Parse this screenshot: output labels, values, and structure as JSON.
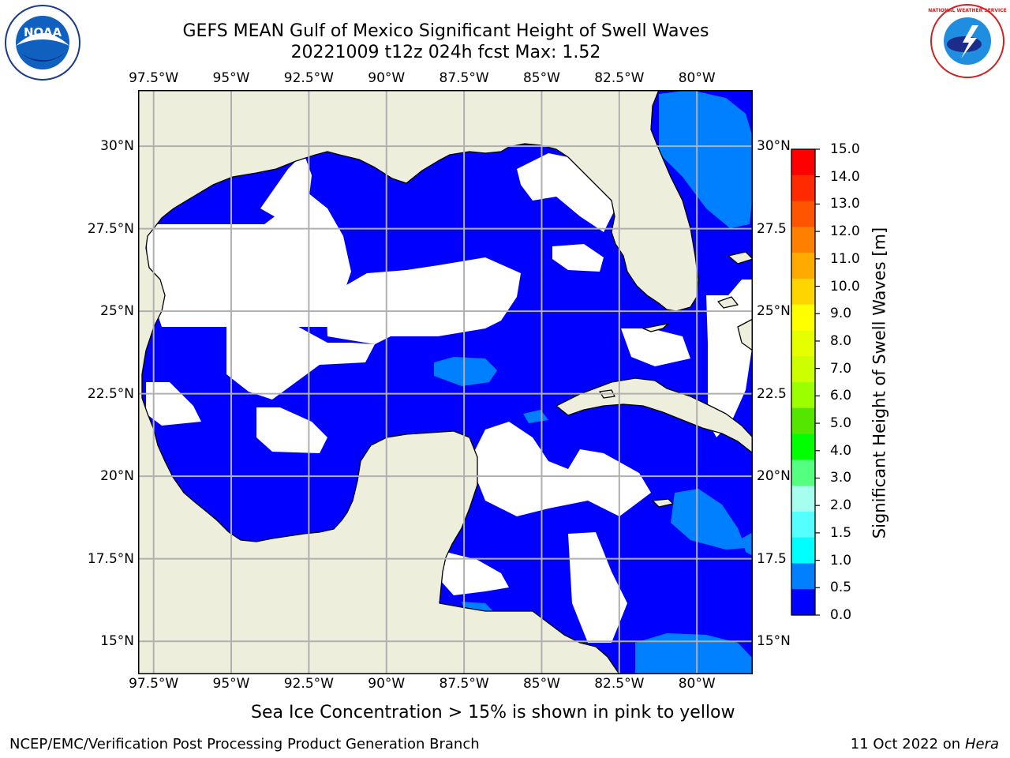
{
  "title_line1": "GEFS MEAN Gulf of Mexico Significant Height of Swell Waves",
  "title_line2": "20221009 t12z 024h fcst   Max: 1.52",
  "lon_labels": [
    "97.5°W",
    "95°W",
    "92.5°W",
    "90°W",
    "87.5°W",
    "85°W",
    "82.5°W",
    "80°W"
  ],
  "lon_values": [
    -97.5,
    -95,
    -92.5,
    -90,
    -87.5,
    -85,
    -82.5,
    -80
  ],
  "lat_labels": [
    "30°N",
    "27.5°N",
    "25°N",
    "22.5°N",
    "20°N",
    "17.5°N",
    "15°N"
  ],
  "lat_values": [
    30,
    27.5,
    25,
    22.5,
    20,
    17.5,
    15
  ],
  "lat_labels_right": [
    "30°N",
    "27.5",
    "25°N",
    "22.5",
    "20°N",
    "17.5",
    "15°N"
  ],
  "map_extent": {
    "lon": [
      -98,
      -78.2
    ],
    "lat": [
      14,
      31.7
    ]
  },
  "colorbar": {
    "title": "Significant Height of Swell Waves [m]",
    "ticks": [
      "15.0",
      "14.0",
      "13.0",
      "12.0",
      "11.0",
      "10.0",
      "9.0",
      "8.0",
      "7.0",
      "6.0",
      "5.0",
      "4.0",
      "3.0",
      "2.0",
      "1.5",
      "1.0",
      "0.5",
      "0.0"
    ],
    "colors": [
      "#ff0000",
      "#ff2a00",
      "#ff5500",
      "#ff8000",
      "#ffaa00",
      "#ffd500",
      "#ffff00",
      "#e6ff00",
      "#cdff00",
      "#9bff00",
      "#55e600",
      "#00ff00",
      "#55ff80",
      "#a6ffee",
      "#55ffff",
      "#00ffff",
      "#0080ff",
      "#0000ff"
    ]
  },
  "colors": {
    "land": "#eeeedc",
    "ocean_low": "#0000ff",
    "ocean_mid": "#0080ff",
    "ocean_high": "#00ffff",
    "missing": "#ffffff",
    "grid": "#b0b0b0"
  },
  "logos": {
    "left": "NOAA",
    "right": "NATIONAL WEATHER SERVICE"
  },
  "note": "Sea Ice Concentration > 15% is shown in pink to yellow",
  "footer": {
    "left": "NCEP/EMC/Verification Post Processing Product Generation Branch",
    "right_prefix": "11 Oct 2022 on ",
    "right_host": "Hera"
  }
}
